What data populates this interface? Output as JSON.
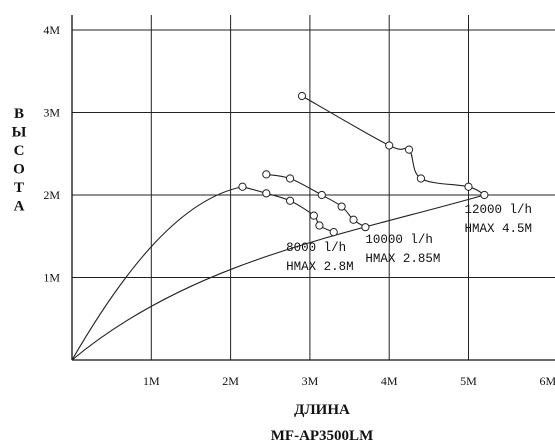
{
  "chart_data": {
    "type": "line",
    "xlabel": "ДЛИНА",
    "ylabel": "ВЫСОТА",
    "model": "MF-AP3500LM",
    "xlim": [
      0,
      6
    ],
    "ylim": [
      0,
      4.3
    ],
    "x_ticks": [
      "1M",
      "2M",
      "3M",
      "4M",
      "5M",
      "6M"
    ],
    "y_ticks": [
      "1M",
      "2M",
      "3M",
      "4M"
    ],
    "grid": true,
    "series": [
      {
        "points": [
          [
            2.15,
            2.1
          ],
          [
            2.45,
            2.02
          ],
          [
            2.75,
            1.93
          ],
          [
            3.05,
            1.75
          ],
          [
            3.12,
            1.63
          ],
          [
            3.3,
            1.55
          ]
        ]
      },
      {
        "points": [
          [
            2.45,
            2.25
          ],
          [
            2.75,
            2.2
          ],
          [
            3.15,
            2.0
          ],
          [
            3.4,
            1.86
          ],
          [
            3.55,
            1.7
          ],
          [
            3.7,
            1.61
          ]
        ]
      },
      {
        "points": [
          [
            2.9,
            3.2
          ],
          [
            4.0,
            2.6
          ],
          [
            4.25,
            2.55
          ],
          [
            4.4,
            2.2
          ],
          [
            5.0,
            2.1
          ],
          [
            5.2,
            2.0
          ]
        ]
      }
    ],
    "envelopes": [
      {
        "from": [
          0,
          0
        ],
        "to": [
          2.15,
          2.1
        ]
      },
      {
        "from": [
          0,
          0
        ],
        "to": [
          5.2,
          2.0
        ]
      }
    ],
    "annotations": [
      {
        "lines": [
          "8000 l/h",
          "HMAX 2.8M"
        ],
        "x": 2.7,
        "y": 1.32
      },
      {
        "lines": [
          "10000 l/h",
          "HMAX 2.85M"
        ],
        "x": 3.7,
        "y": 1.42
      },
      {
        "lines": [
          "12000 l/h",
          "HMAX 4.5M"
        ],
        "x": 4.95,
        "y": 1.78
      }
    ]
  }
}
